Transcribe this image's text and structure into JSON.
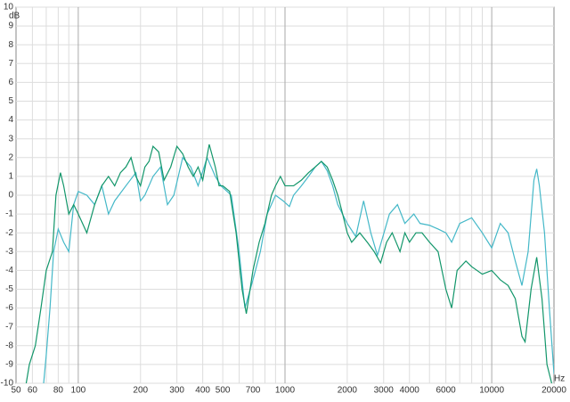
{
  "chart_data": {
    "type": "line",
    "ylabel": "dB",
    "xlabel": "Hz",
    "log_x": true,
    "grid": true,
    "xlim": [
      50,
      20000
    ],
    "ylim": [
      -10,
      10
    ],
    "xticks": [
      50,
      60,
      80,
      100,
      200,
      300,
      400,
      500,
      700,
      1000,
      2000,
      3000,
      4000,
      6000,
      10000,
      20000
    ],
    "xgrid_minor": [
      60,
      70,
      80,
      90,
      200,
      300,
      400,
      500,
      600,
      700,
      800,
      900,
      2000,
      3000,
      4000,
      5000,
      6000,
      7000,
      8000,
      9000
    ],
    "xgrid_major": [
      100,
      1000,
      10000
    ],
    "yticks": [
      -10,
      -9,
      -8,
      -7,
      -6,
      -5,
      -4,
      -3,
      -2,
      -1,
      0,
      1,
      2,
      3,
      4,
      5,
      6,
      7,
      8,
      9,
      10
    ],
    "series": [
      {
        "color": "#44b8c8",
        "x": [
          68,
          70,
          73,
          76,
          80,
          85,
          90,
          95,
          100,
          110,
          120,
          130,
          140,
          150,
          170,
          190,
          200,
          210,
          230,
          250,
          270,
          290,
          320,
          350,
          380,
          420,
          460,
          490,
          550,
          600,
          640,
          700,
          760,
          820,
          900,
          980,
          1050,
          1100,
          1200,
          1300,
          1400,
          1500,
          1600,
          1700,
          1800,
          2000,
          2200,
          2400,
          2600,
          2800,
          3200,
          3500,
          3800,
          4200,
          4500,
          5000,
          5500,
          6000,
          6400,
          7000,
          8000,
          9000,
          10000,
          11000,
          12000,
          13000,
          14000,
          15000,
          16000,
          16500,
          17000,
          18000,
          19000,
          20000
        ],
        "values": [
          -10,
          -8.5,
          -6,
          -3,
          -1.8,
          -2.5,
          -3,
          -0.5,
          0.2,
          0,
          -0.5,
          0.5,
          -1,
          -0.3,
          0.5,
          1.2,
          -0.3,
          0,
          1,
          1.5,
          -0.5,
          0,
          2,
          1.5,
          0.5,
          2,
          1,
          0.5,
          0,
          -3,
          -6,
          -4.5,
          -3,
          -1,
          0,
          -0.3,
          -0.6,
          0,
          0.5,
          1,
          1.5,
          1.8,
          1.3,
          0.5,
          -0.5,
          -1.5,
          -2.2,
          -0.3,
          -2,
          -3.2,
          -1,
          -0.5,
          -1.5,
          -1,
          -1.5,
          -1.6,
          -1.8,
          -2,
          -2.5,
          -1.5,
          -1.2,
          -2,
          -2.8,
          -1.5,
          -2,
          -3.5,
          -4.8,
          -3,
          0.8,
          1.4,
          0.5,
          -2,
          -6,
          -9.5
        ]
      },
      {
        "color": "#12966a",
        "x": [
          56,
          58,
          62,
          66,
          70,
          75,
          78,
          82,
          85,
          90,
          95,
          100,
          110,
          120,
          130,
          140,
          150,
          160,
          170,
          180,
          190,
          200,
          210,
          220,
          230,
          245,
          260,
          280,
          300,
          320,
          340,
          360,
          380,
          400,
          430,
          460,
          480,
          500,
          540,
          580,
          620,
          650,
          700,
          750,
          800,
          860,
          900,
          950,
          1000,
          1100,
          1200,
          1300,
          1400,
          1500,
          1600,
          1700,
          1800,
          1900,
          2000,
          2100,
          2300,
          2500,
          2700,
          2900,
          3100,
          3300,
          3600,
          3800,
          4000,
          4300,
          4600,
          5000,
          5500,
          6000,
          6400,
          6800,
          7500,
          8000,
          9000,
          10000,
          11000,
          12000,
          13000,
          14000,
          14500,
          15500,
          16500,
          17500,
          18500,
          19500
        ],
        "values": [
          -10,
          -9,
          -8,
          -6,
          -4,
          -3,
          0,
          1.2,
          0.5,
          -1,
          -0.5,
          -1,
          -2,
          -0.5,
          0.5,
          1,
          0.5,
          1.2,
          1.5,
          2,
          1,
          0.5,
          1.5,
          1.8,
          2.6,
          2.3,
          0.8,
          1.5,
          2.6,
          2.2,
          1.5,
          1,
          1.5,
          0.8,
          2.7,
          1.5,
          0.5,
          0.5,
          0.2,
          -2,
          -5,
          -6.3,
          -4,
          -2.5,
          -1.5,
          0,
          0.5,
          1,
          0.5,
          0.5,
          0.8,
          1.2,
          1.5,
          1.8,
          1.5,
          0.8,
          0,
          -1,
          -2,
          -2.5,
          -2,
          -2.5,
          -3,
          -3.6,
          -2.5,
          -2,
          -3,
          -2,
          -2.5,
          -2,
          -2,
          -2.5,
          -3,
          -5,
          -6,
          -4,
          -3.5,
          -3.8,
          -4.2,
          -4,
          -4.5,
          -4.8,
          -5.5,
          -7.5,
          -7.8,
          -5,
          -3.3,
          -5.5,
          -9,
          -10
        ]
      }
    ]
  }
}
